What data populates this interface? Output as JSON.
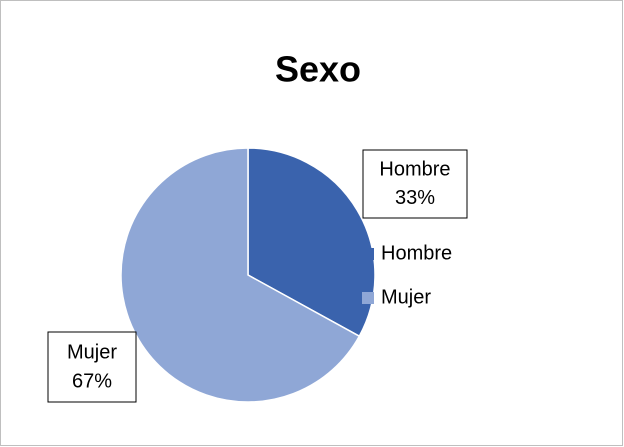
{
  "chart_data": {
    "type": "pie",
    "title": "Sexo",
    "categories": [
      "Hombre",
      "Mujer"
    ],
    "values": [
      33,
      67
    ],
    "value_labels": [
      "33%",
      "67%"
    ],
    "colors": [
      "#3a63ad",
      "#8fa7d6"
    ],
    "legend": "right"
  }
}
